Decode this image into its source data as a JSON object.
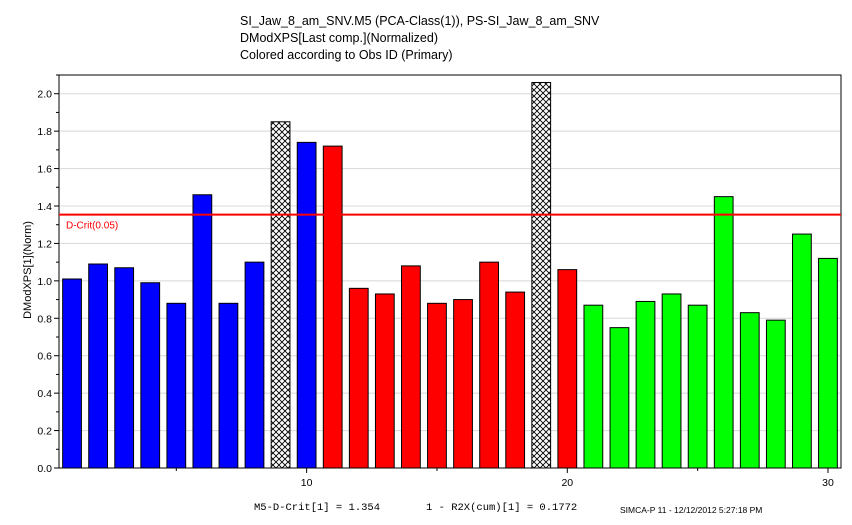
{
  "title_lines": [
    "SI_Jaw_8_am_SNV.M5 (PCA-Class(1)), PS-SI_Jaw_8_am_SNV",
    "DModXPS[Last comp.](Normalized)",
    "Colored according to Obs ID (Primary)"
  ],
  "footer": {
    "stat1": "M5-D-Crit[1] = 1.354",
    "stat2": "1 - R2X(cum)[1] = 0.1772",
    "stamp": "SIMCA-P 11 - 12/12/2012 5:27:18 PM"
  },
  "colors": {
    "blue": "#0000ff",
    "red": "#ff0000",
    "green": "#00ff00",
    "crit_line": "#ff0000",
    "grid": "#d8d8d8"
  },
  "chart_data": {
    "type": "bar",
    "ylabel": "DModXPS[1](Norm)",
    "xlim": [
      0.5,
      30.5
    ],
    "ylim": [
      0,
      2.1
    ],
    "x_ticks": [
      10,
      20,
      30
    ],
    "y_ticks": [
      0.0,
      0.2,
      0.4,
      0.6,
      0.8,
      1.0,
      1.2,
      1.4,
      1.6,
      1.8,
      2.0
    ],
    "grid": "horizontal",
    "critical_line": {
      "label": "D-Crit(0.05)",
      "value": 1.354
    },
    "x": [
      1,
      2,
      3,
      4,
      5,
      6,
      7,
      8,
      9,
      10,
      11,
      12,
      13,
      14,
      15,
      16,
      17,
      18,
      19,
      20,
      21,
      22,
      23,
      24,
      25,
      26,
      27,
      28,
      29,
      30
    ],
    "values": [
      1.01,
      1.09,
      1.07,
      0.99,
      0.88,
      1.46,
      0.88,
      1.1,
      1.85,
      1.74,
      1.72,
      0.96,
      0.93,
      1.08,
      0.88,
      0.9,
      1.1,
      0.94,
      2.06,
      1.06,
      0.87,
      0.75,
      0.89,
      0.93,
      0.87,
      1.45,
      0.83,
      0.79,
      1.25,
      1.12
    ],
    "classes": [
      "blue",
      "blue",
      "blue",
      "blue",
      "blue",
      "blue",
      "blue",
      "blue",
      "hatched",
      "blue",
      "red",
      "red",
      "red",
      "red",
      "red",
      "red",
      "red",
      "red",
      "hatched",
      "red",
      "green",
      "green",
      "green",
      "green",
      "green",
      "green",
      "green",
      "green",
      "green",
      "green"
    ]
  }
}
